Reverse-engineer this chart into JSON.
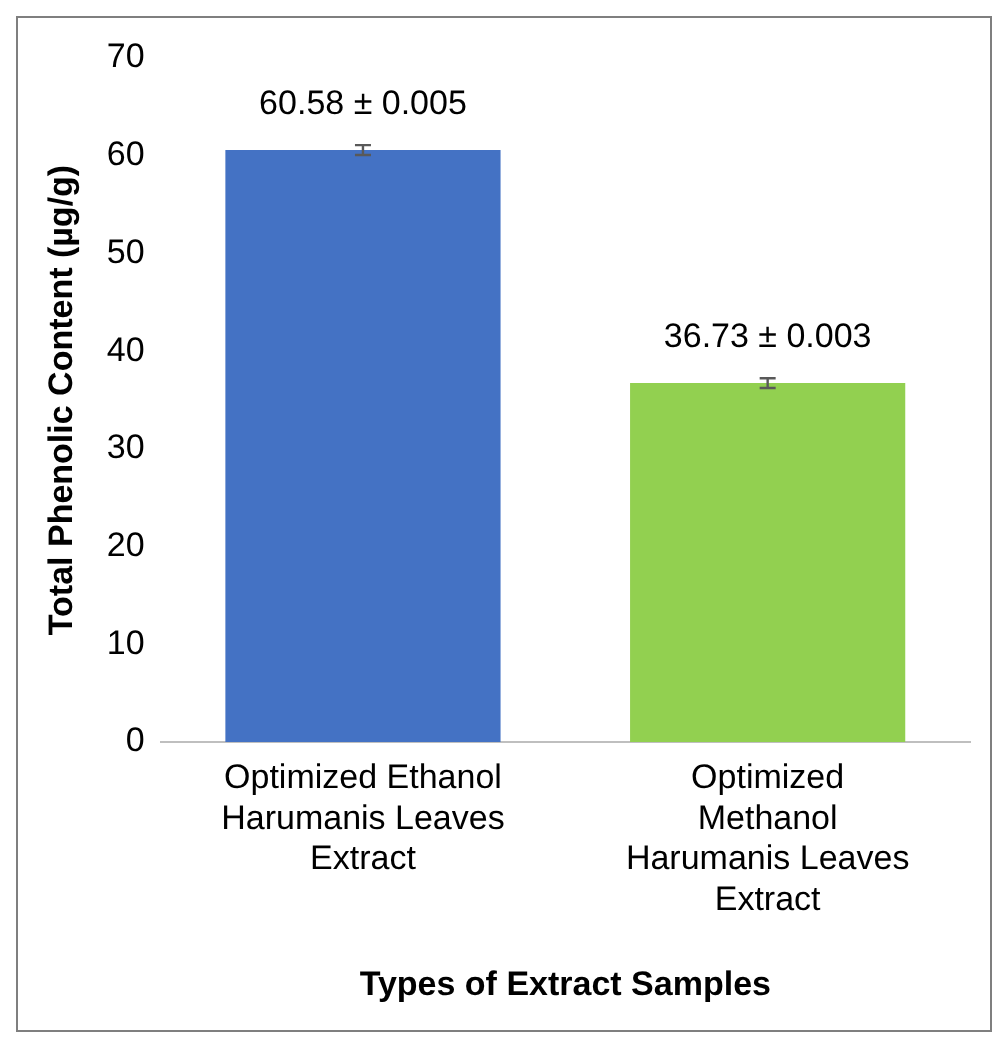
{
  "chart_data": {
    "type": "bar",
    "xlabel": "Types of Extract Samples",
    "ylabel": "Total Phenolic Content (µg/g)",
    "categories": [
      "Optimized Ethanol Harumanis Leaves Extract",
      "Optimized Methanol Harumanis Leaves Extract"
    ],
    "values": [
      60.58,
      36.73
    ],
    "colors": [
      "#4472c4",
      "#92d050"
    ],
    "errors": [
      0.5,
      0.5
    ],
    "value_labels": [
      "60.58 ± 0.005",
      "36.73 ± 0.003"
    ],
    "ylim": [
      0,
      70
    ],
    "yticks": [
      0,
      10,
      20,
      30,
      40,
      50,
      60,
      70
    ],
    "grid": false,
    "legend": false
  }
}
